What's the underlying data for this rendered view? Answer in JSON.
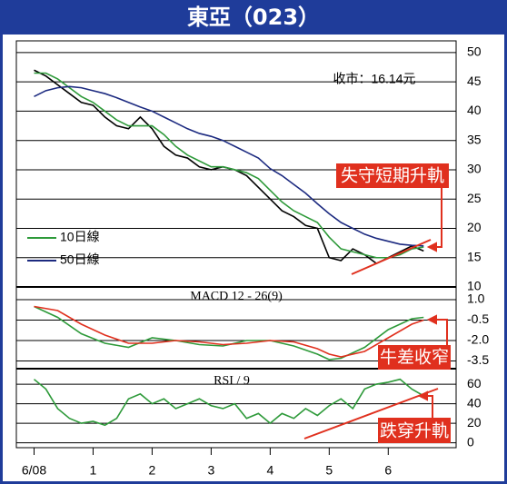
{
  "chart_data": [
    {
      "type": "line",
      "title": "東亞（023）",
      "annotations": [
        "收市：16.14元",
        "失守短期升軌"
      ],
      "x": [
        0,
        0.2,
        0.4,
        0.6,
        0.8,
        1,
        1.2,
        1.4,
        1.6,
        1.8,
        2,
        2.2,
        2.4,
        2.6,
        2.8,
        3,
        3.2,
        3.4,
        3.6,
        3.8,
        4,
        4.2,
        4.4,
        4.6,
        4.8,
        5,
        5.2,
        5.4,
        5.6,
        5.8,
        6,
        6.2,
        6.4,
        6.6
      ],
      "series": [
        {
          "color": "#000000",
          "values": [
            47,
            46,
            44.5,
            43,
            41.5,
            41,
            39,
            37.5,
            37,
            39,
            37,
            34,
            32.5,
            32,
            30.5,
            30,
            30.5,
            30,
            29,
            27,
            25,
            23,
            22,
            20.5,
            20,
            15,
            14.5,
            16.5,
            15.5,
            14,
            15,
            16,
            17,
            16.14
          ]
        },
        {
          "name": "10日線",
          "color": "#2e9a3a",
          "values": [
            46.5,
            46.5,
            45.5,
            44,
            42.5,
            41.5,
            40,
            38.5,
            37.5,
            37.5,
            37.5,
            36,
            34,
            32.5,
            31.5,
            30.5,
            30.5,
            30,
            29.5,
            28.5,
            26.5,
            24.5,
            23,
            22,
            21,
            18.5,
            16.5,
            16,
            15.5,
            15,
            15,
            15.5,
            16.5,
            16.8
          ]
        },
        {
          "name": "50日線",
          "color": "#1c2a80",
          "values": [
            42.5,
            43.5,
            44,
            44.2,
            44,
            43.5,
            43,
            42.3,
            41.5,
            40.7,
            40,
            39,
            38,
            37,
            36.2,
            35.7,
            35,
            34,
            33,
            32,
            30.2,
            29,
            27.5,
            26,
            24.2,
            22.5,
            21,
            20,
            19,
            18.3,
            17.8,
            17.3,
            17.1,
            17
          ]
        }
      ],
      "xlim": [
        -0.3,
        7.15
      ],
      "ylim": [
        10,
        52
      ],
      "yticks": [
        10,
        15,
        20,
        25,
        30,
        35,
        40,
        45,
        50
      ],
      "grid": true
    },
    {
      "type": "line",
      "title": "MACD 12 - 26(9)",
      "annotations": [
        "牛差收窄"
      ],
      "x": [
        0,
        0.4,
        0.8,
        1.2,
        1.6,
        2,
        2.4,
        2.8,
        3.2,
        3.6,
        4,
        4.4,
        4.8,
        5,
        5.2,
        5.6,
        6,
        6.4,
        6.6
      ],
      "series": [
        {
          "color": "#2e9a3a",
          "values": [
            0.5,
            -0.3,
            -1.5,
            -2.2,
            -2.5,
            -1.8,
            -2,
            -2.3,
            -2.4,
            -2,
            -2,
            -2.4,
            -3,
            -3.4,
            -3.3,
            -2.5,
            -1.2,
            -0.4,
            -0.3
          ]
        },
        {
          "color": "#e0301e",
          "values": [
            0.5,
            0.2,
            -0.8,
            -1.6,
            -2.2,
            -2.2,
            -2,
            -2.1,
            -2.3,
            -2.2,
            -2,
            -2.1,
            -2.6,
            -3,
            -3.2,
            -2.8,
            -1.8,
            -0.8,
            -0.5
          ]
        }
      ],
      "xlim": [
        -0.3,
        7.15
      ],
      "ylim": [
        -4,
        1.8
      ],
      "yticks": [
        {
          "value": 1,
          "label": "1.0"
        },
        -0.5,
        {
          "value": -2,
          "label": "-2.0"
        },
        -3.5
      ],
      "grid": true
    },
    {
      "type": "line",
      "title": "RSI / 9",
      "annotations": [
        "跌穿升軌"
      ],
      "x": [
        0,
        0.2,
        0.4,
        0.6,
        0.8,
        1,
        1.2,
        1.4,
        1.6,
        1.8,
        2,
        2.2,
        2.4,
        2.6,
        2.8,
        3,
        3.2,
        3.4,
        3.6,
        3.8,
        4,
        4.2,
        4.4,
        4.6,
        4.8,
        5,
        5.2,
        5.4,
        5.6,
        5.8,
        6,
        6.2,
        6.4,
        6.6
      ],
      "series": [
        {
          "color": "#2e9a3a",
          "values": [
            65,
            55,
            35,
            25,
            20,
            22,
            18,
            25,
            45,
            50,
            40,
            45,
            35,
            40,
            45,
            38,
            35,
            40,
            25,
            30,
            20,
            30,
            25,
            35,
            28,
            38,
            45,
            35,
            55,
            60,
            62,
            65,
            55,
            48
          ]
        }
      ],
      "xlim": [
        -0.3,
        7.15
      ],
      "ylim": [
        -5,
        74
      ],
      "yticks": [
        0,
        20,
        40,
        60
      ],
      "grid": true,
      "xticks": [
        {
          "value": 0,
          "label": "6/08"
        },
        1,
        2,
        3,
        4,
        5,
        6
      ]
    }
  ]
}
